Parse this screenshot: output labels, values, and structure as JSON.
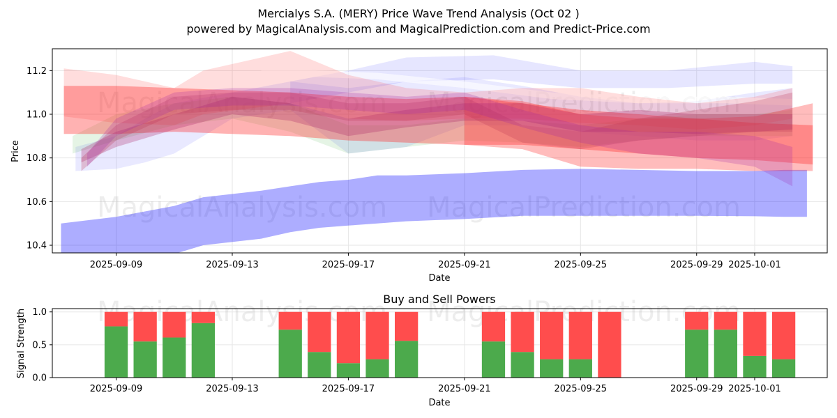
{
  "chart_data": [
    {
      "type": "area",
      "title": "Mercialys S.A. (MERY) Price Wave Trend Analysis (Oct 02 )",
      "subtitle": "powered by MagicalAnalysis.com and MagicalPrediction.com and Predict-Price.com",
      "xlabel": "Date",
      "ylabel": "Price",
      "ylim": [
        10.365,
        11.3
      ],
      "xlim_day_offsets": [
        -2.2,
        24.5
      ],
      "x_reference_date": "2025-09-09",
      "x_tick_offsets": [
        0,
        4,
        8,
        12,
        16,
        20,
        22
      ],
      "x_tick_labels": [
        "2025-09-09",
        "2025-09-13",
        "2025-09-17",
        "2025-09-21",
        "2025-09-25",
        "2025-09-29",
        "2025-10-01"
      ],
      "y_ticks": [
        10.4,
        10.6,
        10.8,
        11.0,
        11.2
      ],
      "y_tick_labels": [
        "10.4",
        "10.6",
        "10.8",
        "11.0",
        "11.2"
      ],
      "grid": true,
      "watermarks": [
        "MagicalAnalysis.com",
        "MagicalPrediction.com"
      ],
      "bands": [
        {
          "name": "lower-blue-band",
          "color": "#0000ff",
          "opacity": 0.32,
          "x": [
            -1.9,
            0,
            2,
            3,
            5,
            6,
            7,
            8,
            9,
            10,
            12,
            14,
            16,
            18,
            20,
            22,
            23,
            23.8
          ],
          "upper": [
            10.5,
            10.53,
            10.58,
            10.62,
            10.65,
            10.67,
            10.69,
            10.7,
            10.72,
            10.72,
            10.73,
            10.745,
            10.75,
            10.745,
            10.74,
            10.74,
            10.745,
            10.745
          ],
          "lower": [
            10.36,
            10.33,
            10.36,
            10.4,
            10.43,
            10.46,
            10.48,
            10.49,
            10.5,
            10.51,
            10.52,
            10.535,
            10.535,
            10.535,
            10.535,
            10.533,
            10.53,
            10.53
          ]
        },
        {
          "name": "blue-band-top",
          "color": "#4d4dff",
          "opacity": 0.14,
          "x": [
            6,
            8,
            10,
            13,
            16,
            19,
            22,
            23.3
          ],
          "upper": [
            11.15,
            11.2,
            11.26,
            11.27,
            11.2,
            11.2,
            11.24,
            11.22
          ],
          "lower": [
            11.05,
            11.1,
            11.15,
            11.16,
            11.12,
            11.12,
            11.14,
            11.14
          ]
        },
        {
          "name": "blue-band-wide",
          "color": "#4d4dff",
          "opacity": 0.12,
          "x": [
            -1.4,
            0,
            1,
            2,
            4,
            6,
            8,
            10,
            12,
            14,
            16,
            18,
            20,
            22,
            23.3
          ],
          "upper": [
            10.85,
            10.9,
            10.98,
            11.05,
            11.1,
            11.15,
            11.12,
            11.15,
            11.17,
            11.13,
            11.08,
            11.05,
            11.06,
            11.1,
            11.12
          ],
          "lower": [
            10.74,
            10.75,
            10.78,
            10.82,
            10.98,
            11.02,
            10.82,
            10.85,
            10.95,
            10.95,
            10.92,
            10.9,
            10.88,
            10.88,
            10.9
          ]
        },
        {
          "name": "white-band",
          "color": "#ffffff",
          "opacity": 0.6,
          "x": [
            5,
            7,
            9,
            12,
            15,
            18,
            21,
            23.3
          ],
          "upper": [
            11.21,
            11.2,
            11.19,
            11.15,
            11.1,
            11.08,
            11.08,
            11.07
          ],
          "lower": [
            11.18,
            11.17,
            11.16,
            11.12,
            11.07,
            11.05,
            11.05,
            11.04
          ]
        },
        {
          "name": "green-band",
          "color": "#33aa33",
          "opacity": 0.13,
          "x": [
            -1.5,
            0,
            2,
            4,
            6,
            8,
            10,
            12,
            14,
            16,
            18,
            20,
            22,
            23.3
          ],
          "upper": [
            10.9,
            11.0,
            11.05,
            11.08,
            11.05,
            10.95,
            10.95,
            10.98,
            10.97,
            10.95,
            10.98,
            11.0,
            11.0,
            11.02
          ],
          "lower": [
            10.82,
            10.88,
            10.95,
            10.98,
            10.92,
            10.82,
            10.85,
            10.88,
            10.87,
            10.85,
            10.88,
            10.9,
            10.9,
            10.9
          ]
        },
        {
          "name": "red-band-upper-wide",
          "color": "#ff3333",
          "opacity": 0.17,
          "x": [
            -1.8,
            0,
            2,
            3,
            6,
            8,
            10,
            12,
            14,
            16,
            18,
            20,
            22,
            23.3
          ],
          "upper": [
            11.21,
            11.18,
            11.12,
            11.2,
            11.29,
            11.18,
            11.12,
            11.1,
            11.12,
            11.12,
            11.08,
            11.05,
            11.08,
            11.12
          ],
          "lower": [
            10.99,
            10.96,
            10.95,
            11.0,
            11.05,
            10.98,
            10.97,
            10.98,
            10.98,
            10.96,
            10.95,
            10.93,
            10.95,
            10.98
          ]
        },
        {
          "name": "red-band-main",
          "color": "#ff2222",
          "opacity": 0.35,
          "x": [
            -1.8,
            0,
            2,
            4,
            6,
            8,
            10,
            12,
            14,
            16,
            18,
            20,
            22,
            24
          ],
          "upper": [
            11.13,
            11.13,
            11.12,
            11.11,
            11.1,
            11.08,
            11.07,
            11.08,
            11.05,
            11.02,
            11.0,
            10.98,
            10.96,
            10.95
          ],
          "lower": [
            10.91,
            10.91,
            10.92,
            10.91,
            10.9,
            10.88,
            10.87,
            10.86,
            10.86,
            10.84,
            10.82,
            10.8,
            10.79,
            10.77
          ]
        },
        {
          "name": "red-band-lower-fan",
          "color": "#ff3333",
          "opacity": 0.33,
          "x": [
            12,
            14,
            16,
            18,
            20,
            22,
            24
          ],
          "upper": [
            11.08,
            11.06,
            11.0,
            10.98,
            10.98,
            10.99,
            11.05
          ],
          "lower": [
            10.86,
            10.84,
            10.76,
            10.75,
            10.75,
            10.74,
            10.74
          ]
        },
        {
          "name": "purple-band-1",
          "color": "#aa2266",
          "opacity": 0.28,
          "x": [
            -1.2,
            0,
            2,
            4,
            6,
            8,
            10,
            12,
            14,
            16,
            18,
            20,
            22,
            23.3
          ],
          "upper": [
            10.84,
            10.92,
            11.0,
            11.08,
            11.05,
            10.98,
            11.02,
            11.05,
            11.05,
            11.0,
            11.02,
            11.0,
            11.0,
            11.0
          ],
          "lower": [
            10.78,
            10.85,
            10.93,
            11.0,
            10.97,
            10.9,
            10.94,
            10.97,
            10.97,
            10.92,
            10.92,
            10.91,
            10.92,
            10.93
          ]
        },
        {
          "name": "purple-band-2",
          "color": "#bb3355",
          "opacity": 0.25,
          "x": [
            -1.2,
            0,
            2,
            4,
            6,
            8,
            10,
            12,
            14,
            16,
            18,
            20,
            22,
            23.3
          ],
          "upper": [
            10.8,
            10.95,
            11.08,
            11.1,
            11.1,
            11.05,
            11.05,
            11.08,
            10.95,
            10.92,
            10.98,
            11.02,
            11.06,
            11.1
          ],
          "lower": [
            10.74,
            10.88,
            11.0,
            11.02,
            11.02,
            10.97,
            10.97,
            11.0,
            10.87,
            10.84,
            10.88,
            10.9,
            10.92,
            10.92
          ]
        },
        {
          "name": "purple-band-3",
          "color": "#9922aa",
          "opacity": 0.22,
          "x": [
            -1.0,
            0,
            2,
            4,
            6,
            8,
            10,
            12,
            14,
            16,
            18,
            20,
            22,
            23.3
          ],
          "upper": [
            10.82,
            10.98,
            11.1,
            11.12,
            11.12,
            11.1,
            11.08,
            11.1,
            11.02,
            10.95,
            10.92,
            10.92,
            10.9,
            10.85
          ],
          "lower": [
            10.76,
            10.9,
            11.02,
            11.04,
            11.04,
            11.02,
            11.0,
            11.02,
            10.94,
            10.87,
            10.82,
            10.8,
            10.76,
            10.67
          ]
        }
      ]
    },
    {
      "type": "bar",
      "title": "Buy and Sell Powers",
      "xlabel": "Date",
      "ylabel": "Signal Strength",
      "ylim": [
        0,
        1.05
      ],
      "y_ticks": [
        0,
        0.5,
        1.0
      ],
      "y_tick_labels": [
        "0.0",
        "0.5",
        "1.0"
      ],
      "x_tick_offsets": [
        0,
        4,
        8,
        12,
        16,
        20,
        22
      ],
      "x_tick_labels": [
        "2025-09-09",
        "2025-09-13",
        "2025-09-17",
        "2025-09-21",
        "2025-09-25",
        "2025-09-29",
        "2025-10-01"
      ],
      "series": [
        {
          "name": "Buy",
          "color": "#4caa4c"
        },
        {
          "name": "Sell",
          "color": "#ff4d4d"
        }
      ],
      "bars": [
        {
          "day_offset": 0,
          "buy": 0.78,
          "sell": 0.22
        },
        {
          "day_offset": 1,
          "buy": 0.55,
          "sell": 0.45
        },
        {
          "day_offset": 2,
          "buy": 0.61,
          "sell": 0.39
        },
        {
          "day_offset": 3,
          "buy": 0.83,
          "sell": 0.17
        },
        {
          "day_offset": 6,
          "buy": 0.73,
          "sell": 0.27
        },
        {
          "day_offset": 7,
          "buy": 0.39,
          "sell": 0.61
        },
        {
          "day_offset": 8,
          "buy": 0.22,
          "sell": 0.78
        },
        {
          "day_offset": 9,
          "buy": 0.28,
          "sell": 0.72
        },
        {
          "day_offset": 10,
          "buy": 0.56,
          "sell": 0.44
        },
        {
          "day_offset": 13,
          "buy": 0.55,
          "sell": 0.45
        },
        {
          "day_offset": 14,
          "buy": 0.39,
          "sell": 0.61
        },
        {
          "day_offset": 15,
          "buy": 0.28,
          "sell": 0.72
        },
        {
          "day_offset": 16,
          "buy": 0.28,
          "sell": 0.72
        },
        {
          "day_offset": 17,
          "buy": 0.0,
          "sell": 1.0
        },
        {
          "day_offset": 20,
          "buy": 0.73,
          "sell": 0.27
        },
        {
          "day_offset": 21,
          "buy": 0.73,
          "sell": 0.27
        },
        {
          "day_offset": 22,
          "buy": 0.33,
          "sell": 0.67
        },
        {
          "day_offset": 23,
          "buy": 0.28,
          "sell": 0.72
        }
      ],
      "watermarks": [
        "MagicalAnalysis.com",
        "MagicalPrediction.com"
      ]
    }
  ]
}
